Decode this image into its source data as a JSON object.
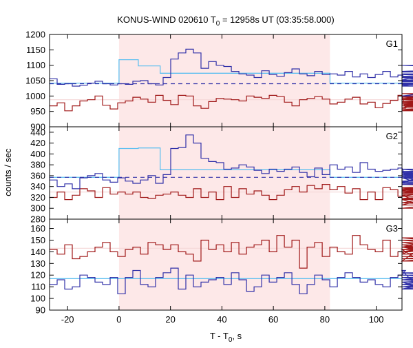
{
  "title": "KONUS-WIND 020610 T",
  "title_sub": "0",
  "title_rest": " = 12958s UT (03:35:58.000)",
  "ylabel": "counts / sec",
  "xlabel": "T - T",
  "xlabel_sub": "0",
  "xlabel_rest": ", s",
  "colors": {
    "blue_series": "#3030a8",
    "red_series": "#a01818",
    "fit_cyan": "#60c0f0",
    "background_pink": "#f5d8d8",
    "highlight_band": "#fde8e8",
    "dash_line": "#3030a8",
    "axis": "#000000"
  },
  "chart_data": {
    "type": "line",
    "x_range": [
      -27,
      110
    ],
    "x_ticks": [
      -20,
      0,
      20,
      40,
      60,
      80,
      100
    ],
    "highlight_interval": [
      0,
      82
    ],
    "step_width": 2.944,
    "panels": [
      {
        "name": "G1",
        "ylim": [
          900,
          1200
        ],
        "y_ticks": [
          900,
          950,
          1000,
          1050,
          1100,
          1150,
          1200
        ],
        "dashed_level": 1040,
        "background_level": 988,
        "blue_counts": [
          1056,
          1038,
          1040,
          1032,
          1035,
          1042,
          1048,
          1040,
          1036,
          1040,
          1038,
          1048,
          1050,
          1040,
          1036,
          1060,
          1120,
          1140,
          1152,
          1140,
          1090,
          1112,
          1100,
          1096,
          1080,
          1072,
          1068,
          1060,
          1082,
          1070,
          1064,
          1076,
          1088,
          1072,
          1066,
          1080,
          1070,
          1072,
          1068,
          1080,
          1062,
          1072,
          1060,
          1070,
          1080,
          1062,
          1068,
          1060,
          1064,
          1052,
          1070,
          1064,
          1060,
          1040,
          1048,
          1038,
          1000,
          1032,
          1050,
          1072,
          1060,
          1042,
          1034,
          1038,
          1046,
          1080,
          1100,
          1078
        ],
        "red_counts": [
          968,
          978,
          952,
          968,
          984,
          988,
          1000,
          970,
          958,
          978,
          984,
          996,
          990,
          980,
          1002,
          986,
          972,
          1002,
          1000,
          968,
          960,
          982,
          992,
          990,
          988,
          984,
          1000,
          996,
          992,
          1002,
          998,
          980,
          968,
          988,
          992,
          998,
          990,
          974,
          980,
          990,
          996,
          974,
          980,
          962,
          976,
          986,
          1002,
          960,
          974,
          968,
          982,
          988,
          994,
          980,
          968,
          956,
          968,
          990,
          998,
          976,
          962,
          952,
          1000,
          1008,
          988,
          974,
          952,
          990
        ],
        "fit_steps": [
          [
            -27,
            0,
            1042
          ],
          [
            0,
            7.5,
            1118
          ],
          [
            7.5,
            16,
            1098
          ],
          [
            16,
            82,
            1074
          ],
          [
            82,
            110,
            1042
          ]
        ]
      },
      {
        "name": "G2",
        "ylim": [
          280,
          450
        ],
        "y_ticks": [
          280,
          300,
          320,
          340,
          360,
          380,
          400,
          420,
          440
        ],
        "dashed_level": 357,
        "background_level": 330,
        "blue_counts": [
          352,
          340,
          345,
          336,
          356,
          360,
          364,
          352,
          348,
          356,
          350,
          346,
          352,
          360,
          346,
          362,
          410,
          412,
          435,
          420,
          392,
          386,
          384,
          372,
          374,
          380,
          376,
          370,
          364,
          372,
          368,
          372,
          376,
          366,
          358,
          374,
          362,
          380,
          372,
          376,
          366,
          384,
          372,
          368,
          370,
          372,
          374,
          358,
          356,
          346,
          362,
          366,
          348,
          372,
          362,
          356,
          344,
          350,
          358,
          364,
          366,
          350,
          362,
          356,
          366,
          368,
          360,
          358
        ],
        "red_counts": [
          320,
          330,
          316,
          324,
          336,
          332,
          320,
          338,
          326,
          330,
          326,
          330,
          320,
          318,
          324,
          326,
          330,
          324,
          320,
          336,
          320,
          330,
          316,
          340,
          320,
          336,
          326,
          332,
          324,
          316,
          324,
          334,
          340,
          330,
          342,
          336,
          344,
          334,
          340,
          328,
          336,
          316,
          330,
          316,
          338,
          334,
          322,
          324,
          316,
          306,
          318,
          322,
          334,
          310,
          328,
          336,
          330,
          338,
          326,
          316,
          332,
          338,
          344,
          336,
          326,
          310,
          300,
          330
        ],
        "fit_steps": [
          [
            -27,
            0,
            357
          ],
          [
            0,
            7.5,
            410
          ],
          [
            7.5,
            16,
            411
          ],
          [
            16,
            82,
            371
          ],
          [
            82,
            110,
            357
          ]
        ]
      },
      {
        "name": "G3",
        "ylim": [
          90,
          168
        ],
        "y_ticks": [
          90,
          100,
          110,
          120,
          130,
          140,
          150,
          160
        ],
        "dashed_level": null,
        "background_level": 143,
        "blue_counts": [
          112,
          116,
          108,
          110,
          120,
          118,
          114,
          112,
          118,
          104,
          118,
          124,
          112,
          110,
          118,
          122,
          126,
          108,
          120,
          110,
          114,
          116,
          118,
          112,
          122,
          116,
          106,
          110,
          120,
          114,
          118,
          122,
          112,
          104,
          112,
          120,
          116,
          110,
          118,
          122,
          118,
          114,
          116,
          112,
          110,
          118,
          120,
          124,
          114,
          110,
          112,
          116,
          118,
          112,
          108,
          120,
          118,
          116,
          112,
          122,
          116,
          110,
          108,
          118,
          114,
          120,
          112,
          110
        ],
        "red_counts": [
          142,
          138,
          146,
          134,
          136,
          140,
          144,
          148,
          140,
          136,
          142,
          144,
          138,
          148,
          146,
          142,
          146,
          140,
          138,
          132,
          150,
          142,
          146,
          140,
          148,
          138,
          144,
          146,
          150,
          140,
          154,
          144,
          150,
          126,
          144,
          148,
          136,
          144,
          140,
          138,
          154,
          146,
          142,
          140,
          150,
          136,
          140,
          138,
          142,
          132,
          148,
          144,
          150,
          146,
          138,
          142,
          148,
          140,
          152,
          144,
          132,
          140,
          152,
          144,
          136,
          134,
          142,
          140
        ],
        "fit_steps": [
          [
            -27,
            110,
            117
          ]
        ]
      }
    ]
  }
}
